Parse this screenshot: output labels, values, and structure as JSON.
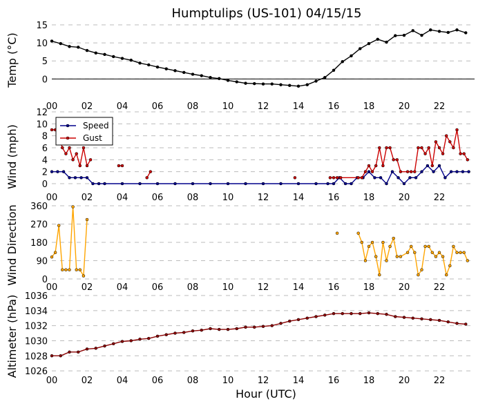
{
  "chart_data": [
    {
      "type": "line",
      "title": "Humptulips (US-101) 04/15/15",
      "ylabel": "Temp ($^\\circ$C)",
      "ylabel_text": "Temp (",
      "ylabel_unit": "°C)",
      "xlabel": "",
      "xlim": [
        0,
        24
      ],
      "ylim": [
        -3,
        15
      ],
      "yticks": [
        0,
        5,
        10,
        15
      ],
      "xticks": [
        "00",
        "02",
        "04",
        "06",
        "08",
        "10",
        "12",
        "14",
        "16",
        "18",
        "20",
        "22"
      ],
      "grid": true,
      "series": [
        {
          "color": "#000000",
          "x": [
            0.0,
            0.5,
            1.0,
            1.5,
            2.0,
            2.5,
            3.0,
            3.5,
            4.0,
            4.5,
            5.0,
            5.5,
            6.0,
            6.5,
            7.0,
            7.5,
            8.0,
            8.5,
            9.0,
            9.5,
            10.0,
            10.5,
            11.0,
            11.5,
            12.0,
            12.5,
            13.0,
            13.5,
            14.0,
            14.5,
            15.0,
            15.5,
            16.0,
            16.5,
            17.0,
            17.5,
            18.0,
            18.5,
            19.0,
            19.5,
            20.0,
            20.5,
            21.0,
            21.5,
            22.0,
            22.5,
            23.0,
            23.5
          ],
          "values": [
            10.5,
            9.8,
            9.0,
            8.8,
            7.9,
            7.2,
            6.8,
            6.2,
            5.7,
            5.2,
            4.4,
            3.9,
            3.3,
            2.8,
            2.3,
            1.8,
            1.3,
            0.9,
            0.4,
            0.1,
            -0.4,
            -0.8,
            -1.2,
            -1.3,
            -1.4,
            -1.4,
            -1.6,
            -1.8,
            -2.0,
            -1.6,
            -0.6,
            0.4,
            2.4,
            4.8,
            6.4,
            8.4,
            9.8,
            11.0,
            10.2,
            12.0,
            12.1,
            13.4,
            12.1,
            13.6,
            13.2,
            12.9,
            13.6,
            12.8
          ]
        }
      ],
      "zero_line": true
    },
    {
      "type": "line",
      "title": "",
      "ylabel": "Wind (mph)",
      "xlabel": "",
      "xlim": [
        0,
        24
      ],
      "ylim": [
        0,
        12
      ],
      "yticks": [
        0,
        2,
        4,
        6,
        8,
        10,
        12
      ],
      "xticks": [
        "00",
        "02",
        "04",
        "06",
        "08",
        "10",
        "12",
        "14",
        "16",
        "18",
        "20",
        "22"
      ],
      "grid": true,
      "legend": "top-left",
      "series": [
        {
          "name": "Speed",
          "color": "#00008b",
          "x": [
            0.0,
            0.33,
            0.67,
            1.0,
            1.33,
            1.67,
            2.0,
            2.33,
            2.67,
            3.0,
            4.0,
            5.0,
            6.0,
            7.0,
            8.0,
            9.0,
            10.0,
            11.0,
            12.0,
            13.0,
            14.0,
            15.0,
            15.67,
            16.0,
            16.33,
            16.67,
            17.0,
            17.33,
            17.67,
            18.0,
            18.33,
            18.67,
            19.0,
            19.33,
            19.67,
            20.0,
            20.33,
            20.67,
            21.0,
            21.33,
            21.67,
            22.0,
            22.33,
            22.67,
            23.0,
            23.33,
            23.67
          ],
          "values": [
            2,
            2,
            2,
            1,
            1,
            1,
            1,
            0,
            0,
            0,
            0,
            0,
            0,
            0,
            0,
            0,
            0,
            0,
            0,
            0,
            0,
            0,
            0,
            0,
            1,
            0,
            0,
            1,
            1,
            2,
            1,
            1,
            0,
            2,
            1,
            0,
            1,
            1,
            2,
            3,
            2,
            3,
            1,
            2,
            2,
            2,
            2
          ]
        },
        {
          "name": "Gust",
          "color": "#cc0000",
          "x": [
            0.0,
            0.2,
            0.4,
            0.6,
            0.8,
            1.0,
            1.2,
            1.4,
            1.6,
            1.8,
            2.0,
            2.2,
            3.8,
            4.0,
            5.4,
            5.6,
            13.8,
            15.8,
            16.0,
            16.2,
            16.4,
            17.4,
            17.6,
            17.8,
            18.0,
            18.2,
            18.4,
            18.6,
            18.8,
            19.0,
            19.2,
            19.4,
            19.6,
            19.8,
            20.2,
            20.4,
            20.6,
            20.8,
            21.0,
            21.2,
            21.4,
            21.6,
            21.8,
            22.0,
            22.2,
            22.4,
            22.6,
            22.8,
            23.0,
            23.2,
            23.4,
            23.6
          ],
          "values": [
            9,
            9,
            8,
            6,
            5,
            6,
            4,
            5,
            3,
            6,
            3,
            4,
            3,
            3,
            1,
            2,
            1,
            1,
            1,
            1,
            1,
            1,
            1,
            2,
            3,
            2,
            3,
            6,
            3,
            6,
            6,
            4,
            4,
            2,
            2,
            2,
            2,
            6,
            6,
            5,
            6,
            3,
            7,
            6,
            5,
            8,
            7,
            6,
            9,
            5,
            5,
            4
          ]
        }
      ]
    },
    {
      "type": "line",
      "title": "",
      "ylabel": "Wind Direction",
      "xlabel": "",
      "xlim": [
        0,
        24
      ],
      "ylim": [
        0,
        360
      ],
      "yticks": [
        0,
        90,
        180,
        270,
        360
      ],
      "xticks": [
        "00",
        "02",
        "04",
        "06",
        "08",
        "10",
        "12",
        "14",
        "16",
        "18",
        "20",
        "22"
      ],
      "grid": true,
      "series": [
        {
          "color": "#ffa500",
          "x": [
            0.0,
            0.2,
            0.4,
            0.6,
            0.8,
            1.0,
            1.2,
            1.4,
            1.6,
            1.8,
            2.0,
            16.2,
            17.4,
            17.6,
            17.8,
            18.0,
            18.2,
            18.4,
            18.6,
            18.8,
            19.0,
            19.2,
            19.4,
            19.6,
            19.8,
            20.2,
            20.4,
            20.6,
            20.8,
            21.0,
            21.2,
            21.4,
            21.6,
            21.8,
            22.0,
            22.2,
            22.4,
            22.6,
            22.8,
            23.0,
            23.2,
            23.4,
            23.6
          ],
          "values": [
            108,
            130,
            263,
            45,
            45,
            45,
            355,
            45,
            45,
            15,
            292,
            225,
            225,
            180,
            90,
            160,
            180,
            110,
            20,
            180,
            90,
            160,
            200,
            110,
            110,
            130,
            160,
            130,
            20,
            45,
            160,
            160,
            130,
            110,
            130,
            110,
            20,
            65,
            160,
            130,
            130,
            130,
            90
          ]
        }
      ]
    },
    {
      "type": "line",
      "title": "",
      "ylabel": "Altimeter (hPa)",
      "xlabel": "Hour (UTC)",
      "xlim": [
        0,
        24
      ],
      "ylim": [
        1025,
        1036
      ],
      "yticks": [
        1026,
        1028,
        1030,
        1032,
        1034,
        1036
      ],
      "xticks": [
        "00",
        "02",
        "04",
        "06",
        "08",
        "10",
        "12",
        "14",
        "16",
        "18",
        "20",
        "22"
      ],
      "grid": true,
      "series": [
        {
          "color": "#8b0000",
          "x": [
            0.0,
            0.5,
            1.0,
            1.5,
            2.0,
            2.5,
            3.0,
            3.5,
            4.0,
            4.5,
            5.0,
            5.5,
            6.0,
            6.5,
            7.0,
            7.5,
            8.0,
            8.5,
            9.0,
            9.5,
            10.0,
            10.5,
            11.0,
            11.5,
            12.0,
            12.5,
            13.0,
            13.5,
            14.0,
            14.5,
            15.0,
            15.5,
            16.0,
            16.5,
            17.0,
            17.5,
            18.0,
            18.5,
            19.0,
            19.5,
            20.0,
            20.5,
            21.0,
            21.5,
            22.0,
            22.5,
            23.0,
            23.5
          ],
          "values": [
            1028.0,
            1028.0,
            1028.5,
            1028.5,
            1028.9,
            1029.0,
            1029.3,
            1029.6,
            1029.9,
            1030.0,
            1030.2,
            1030.3,
            1030.6,
            1030.8,
            1031.0,
            1031.1,
            1031.3,
            1031.4,
            1031.6,
            1031.5,
            1031.5,
            1031.6,
            1031.8,
            1031.8,
            1031.9,
            1032.0,
            1032.3,
            1032.6,
            1032.8,
            1033.0,
            1033.2,
            1033.4,
            1033.6,
            1033.6,
            1033.6,
            1033.6,
            1033.7,
            1033.6,
            1033.5,
            1033.2,
            1033.1,
            1033.0,
            1032.9,
            1032.8,
            1032.7,
            1032.5,
            1032.3,
            1032.2
          ]
        }
      ]
    }
  ]
}
